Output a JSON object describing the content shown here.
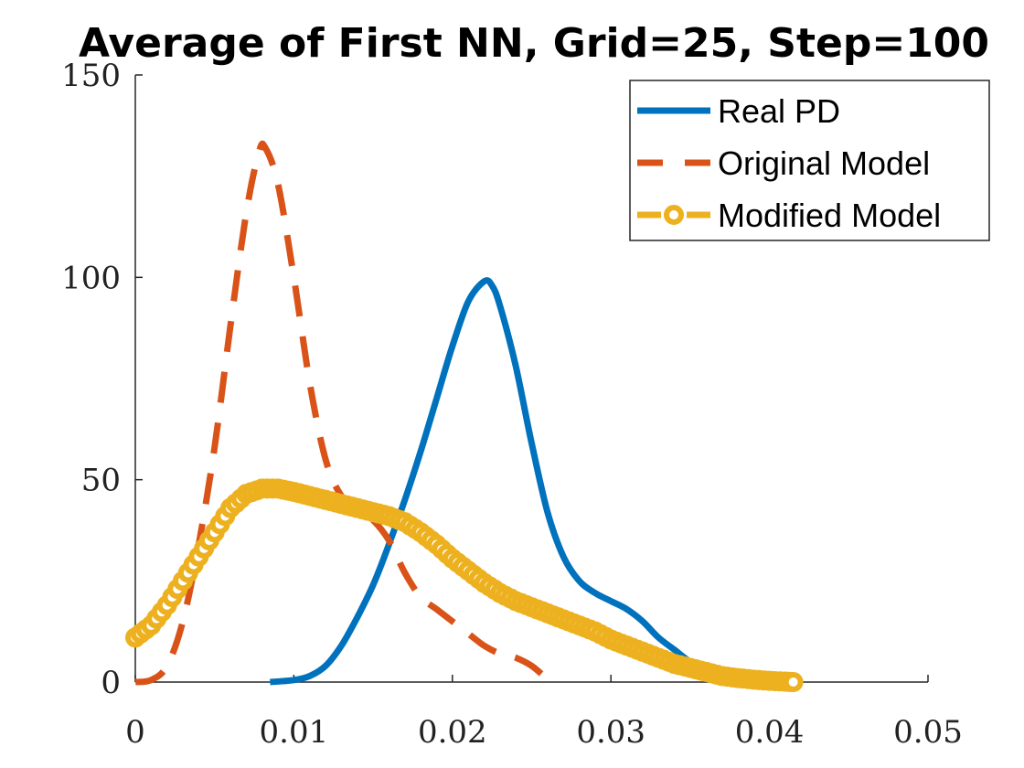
{
  "chart_data": {
    "type": "line",
    "title": "Average of First NN, Grid=25, Step=100",
    "xlabel": "",
    "ylabel": "",
    "xlim": [
      0,
      0.05
    ],
    "ylim": [
      0,
      150
    ],
    "x_ticks": [
      0,
      0.01,
      0.02,
      0.03,
      0.04,
      0.05
    ],
    "x_tick_labels": [
      "0",
      "0.01",
      "0.02",
      "0.03",
      "0.04",
      "0.05"
    ],
    "y_ticks": [
      0,
      50,
      100,
      150
    ],
    "y_tick_labels": [
      "0",
      "50",
      "100",
      "150"
    ],
    "grid": false,
    "legend_position": "top-right",
    "series": [
      {
        "name": "Real PD",
        "style": "solid",
        "color": "#0072BD",
        "points": [
          [
            0.0085,
            0.0
          ],
          [
            0.01,
            0.5
          ],
          [
            0.011,
            1.5
          ],
          [
            0.012,
            4
          ],
          [
            0.013,
            9
          ],
          [
            0.014,
            16
          ],
          [
            0.015,
            24
          ],
          [
            0.016,
            34
          ],
          [
            0.017,
            45
          ],
          [
            0.018,
            57
          ],
          [
            0.019,
            70
          ],
          [
            0.02,
            83
          ],
          [
            0.021,
            94
          ],
          [
            0.022,
            99
          ],
          [
            0.0225,
            98
          ],
          [
            0.023,
            93
          ],
          [
            0.024,
            78
          ],
          [
            0.025,
            59
          ],
          [
            0.026,
            42
          ],
          [
            0.027,
            31
          ],
          [
            0.028,
            25
          ],
          [
            0.029,
            22
          ],
          [
            0.03,
            20
          ],
          [
            0.031,
            18
          ],
          [
            0.032,
            15
          ],
          [
            0.033,
            11
          ],
          [
            0.034,
            8
          ],
          [
            0.035,
            5
          ],
          [
            0.036,
            3
          ],
          [
            0.037,
            2
          ],
          [
            0.038,
            1
          ],
          [
            0.039,
            0.4
          ],
          [
            0.04,
            0.1
          ],
          [
            0.041,
            0.0
          ]
        ]
      },
      {
        "name": "Original Model",
        "style": "dashed",
        "color": "#D95319",
        "points": [
          [
            0.0,
            0.0
          ],
          [
            0.001,
            0.5
          ],
          [
            0.002,
            4
          ],
          [
            0.003,
            15
          ],
          [
            0.004,
            34
          ],
          [
            0.005,
            58
          ],
          [
            0.006,
            88
          ],
          [
            0.007,
            116
          ],
          [
            0.0078,
            131
          ],
          [
            0.0082,
            132
          ],
          [
            0.009,
            123
          ],
          [
            0.01,
            100
          ],
          [
            0.011,
            74
          ],
          [
            0.012,
            55
          ],
          [
            0.013,
            46
          ],
          [
            0.014,
            43
          ],
          [
            0.015,
            40
          ],
          [
            0.016,
            35
          ],
          [
            0.017,
            27
          ],
          [
            0.018,
            21
          ],
          [
            0.019,
            18
          ],
          [
            0.02,
            15
          ],
          [
            0.021,
            12
          ],
          [
            0.022,
            9
          ],
          [
            0.023,
            7
          ],
          [
            0.024,
            6
          ],
          [
            0.025,
            4
          ],
          [
            0.026,
            0.8
          ],
          [
            0.0265,
            0.0
          ]
        ]
      },
      {
        "name": "Modified Model",
        "style": "dashed-circles",
        "color": "#EDB120",
        "points": [
          [
            0.0,
            11
          ],
          [
            0.001,
            14
          ],
          [
            0.002,
            19
          ],
          [
            0.003,
            25
          ],
          [
            0.004,
            31
          ],
          [
            0.005,
            37
          ],
          [
            0.006,
            43
          ],
          [
            0.007,
            46.5
          ],
          [
            0.008,
            47.8
          ],
          [
            0.009,
            47.8
          ],
          [
            0.01,
            47
          ],
          [
            0.011,
            46
          ],
          [
            0.012,
            45
          ],
          [
            0.013,
            44
          ],
          [
            0.014,
            43
          ],
          [
            0.015,
            42
          ],
          [
            0.016,
            41
          ],
          [
            0.017,
            39.5
          ],
          [
            0.018,
            37
          ],
          [
            0.019,
            34
          ],
          [
            0.02,
            30.5
          ],
          [
            0.021,
            27.5
          ],
          [
            0.022,
            24.5
          ],
          [
            0.023,
            22
          ],
          [
            0.024,
            20
          ],
          [
            0.025,
            18.5
          ],
          [
            0.026,
            17
          ],
          [
            0.027,
            15.5
          ],
          [
            0.028,
            14
          ],
          [
            0.029,
            12.5
          ],
          [
            0.03,
            10.5
          ],
          [
            0.031,
            9
          ],
          [
            0.032,
            7.5
          ],
          [
            0.033,
            6
          ],
          [
            0.034,
            4.5
          ],
          [
            0.035,
            3.5
          ],
          [
            0.036,
            2.5
          ],
          [
            0.037,
            1.5
          ],
          [
            0.038,
            1
          ],
          [
            0.039,
            0.6
          ],
          [
            0.04,
            0.3
          ],
          [
            0.041,
            0.1
          ],
          [
            0.0415,
            0.0
          ]
        ]
      }
    ]
  }
}
